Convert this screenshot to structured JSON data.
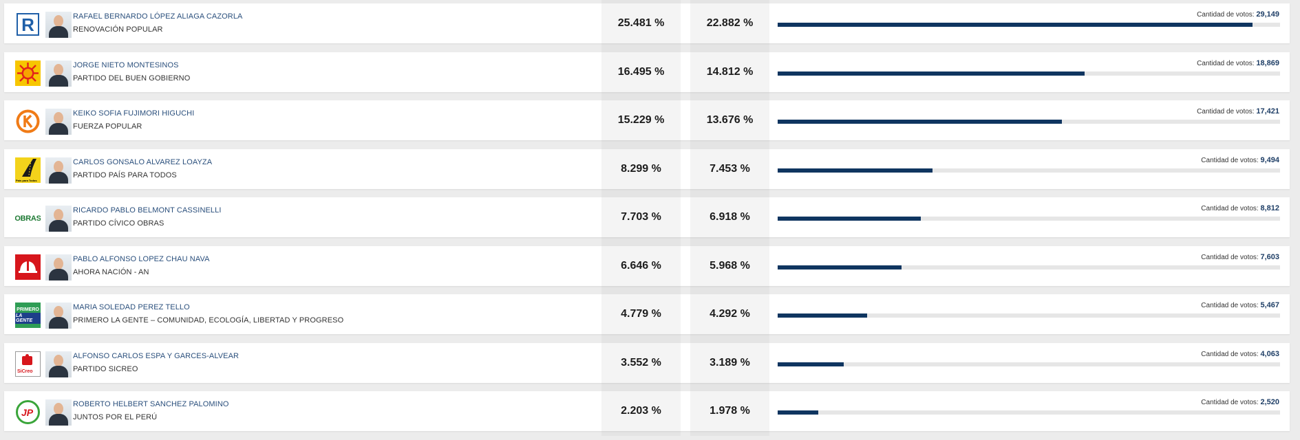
{
  "results": {
    "max_votes": 29149,
    "votes_label": "Cantidad de votos:",
    "candidates": [
      {
        "name": "RAFAEL BERNARDO LÓPEZ ALIAGA CAZORLA",
        "party": "RENOVACIÓN POPULAR",
        "pct_valid": "25.481 %",
        "pct_emitted": "22.882 %",
        "votes": "29,149",
        "votes_fraction": 1.0,
        "logo_icon": "renovacion-popular-logo-icon",
        "logo_color": "#1f5fa8"
      },
      {
        "name": "JORGE NIETO MONTESINOS",
        "party": "PARTIDO DEL BUEN GOBIERNO",
        "pct_valid": "16.495 %",
        "pct_emitted": "14.812 %",
        "votes": "18,869",
        "votes_fraction": 0.647,
        "logo_icon": "buen-gobierno-sun-logo-icon",
        "logo_color": "#e2231a"
      },
      {
        "name": "KEIKO SOFIA FUJIMORI HIGUCHI",
        "party": "FUERZA POPULAR",
        "pct_valid": "15.229 %",
        "pct_emitted": "13.676 %",
        "votes": "17,421",
        "votes_fraction": 0.598,
        "logo_icon": "fuerza-popular-k-logo-icon",
        "logo_color": "#f07b16"
      },
      {
        "name": "CARLOS GONSALO ALVAREZ LOAYZA",
        "party": "PARTIDO PAÍS PARA TODOS",
        "pct_valid": "8.299 %",
        "pct_emitted": "7.453 %",
        "votes": "9,494",
        "votes_fraction": 0.326,
        "logo_icon": "pais-para-todos-road-logo-icon",
        "logo_color": "#f3d31b"
      },
      {
        "name": "RICARDO PABLO BELMONT CASSINELLI",
        "party": "PARTIDO CÍVICO OBRAS",
        "pct_valid": "7.703 %",
        "pct_emitted": "6.918 %",
        "votes": "8,812",
        "votes_fraction": 0.302,
        "logo_icon": "obras-logo-icon",
        "logo_color": "#1e7a34"
      },
      {
        "name": "PABLO ALFONSO LOPEZ CHAU NAVA",
        "party": "AHORA NACIÓN - AN",
        "pct_valid": "6.646 %",
        "pct_emitted": "5.968 %",
        "votes": "7,603",
        "votes_fraction": 0.261,
        "logo_icon": "ahora-nacion-helmet-logo-icon",
        "logo_color": "#d7161c"
      },
      {
        "name": "MARIA SOLEDAD PEREZ TELLO",
        "party": "PRIMERO LA GENTE – COMUNIDAD, ECOLOGÍA, LIBERTAD Y PROGRESO",
        "pct_valid": "4.779 %",
        "pct_emitted": "4.292 %",
        "votes": "5,467",
        "votes_fraction": 0.188,
        "logo_icon": "primero-la-gente-logo-icon",
        "logo_color": "#1e8c4a"
      },
      {
        "name": "ALFONSO CARLOS ESPA Y GARCES-ALVEAR",
        "party": "PARTIDO SICREO",
        "pct_valid": "3.552 %",
        "pct_emitted": "3.189 %",
        "votes": "4,063",
        "votes_fraction": 0.139,
        "logo_icon": "sicreo-logo-icon",
        "logo_color": "#d7161c"
      },
      {
        "name": "ROBERTO HELBERT SANCHEZ PALOMINO",
        "party": "JUNTOS POR EL PERÚ",
        "pct_valid": "2.203 %",
        "pct_emitted": "1.978 %",
        "votes": "2,520",
        "votes_fraction": 0.086,
        "logo_icon": "juntos-por-el-peru-jp-logo-icon",
        "logo_color": "#3aa53a"
      }
    ]
  },
  "logos": {
    "r": "R",
    "obras": "OBRAS",
    "primero": "PRIMERO",
    "la_gente": "LA GENTE",
    "pais": "País para Todos",
    "sicreo": "SiCreo",
    "jp": "JP"
  }
}
